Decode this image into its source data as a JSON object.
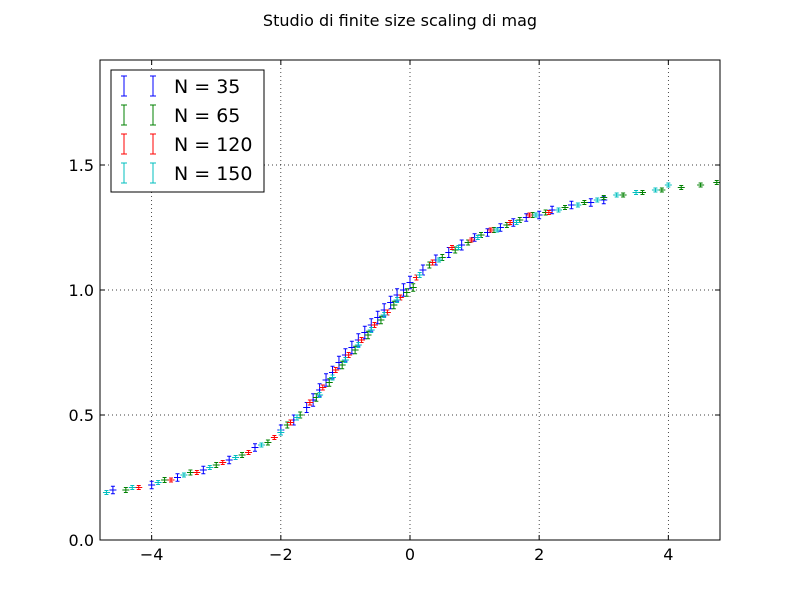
{
  "chart_data": {
    "type": "scatter",
    "title": "Studio di finite size scaling di mag",
    "xlabel": "",
    "ylabel": "",
    "xlim": [
      -4.8,
      4.8
    ],
    "ylim": [
      0.0,
      1.92
    ],
    "x_ticks": [
      -4,
      -2,
      0,
      2,
      4
    ],
    "x_tick_labels": [
      "−4",
      "−2",
      "0",
      "2",
      "4"
    ],
    "y_ticks": [
      0.0,
      0.5,
      1.0,
      1.5
    ],
    "y_tick_labels": [
      "0.0",
      "0.5",
      "1.0",
      "1.5"
    ],
    "grid": true,
    "legend_position": "top-left",
    "marker": "errorbar",
    "series": [
      {
        "name": "N = 35",
        "color": "#0000ff",
        "x": [
          -4.6,
          -4.0,
          -3.6,
          -3.2,
          -2.8,
          -2.4,
          -2.0,
          -1.8,
          -1.6,
          -1.5,
          -1.4,
          -1.3,
          -1.2,
          -1.1,
          -1.0,
          -0.9,
          -0.8,
          -0.7,
          -0.6,
          -0.5,
          -0.4,
          -0.3,
          -0.2,
          -0.1,
          0.0,
          0.2,
          0.4,
          0.6,
          0.8,
          1.0,
          1.2,
          1.4,
          1.6,
          1.8,
          2.0,
          2.2,
          2.5,
          2.8,
          3.0
        ],
        "y": [
          0.2,
          0.22,
          0.25,
          0.28,
          0.32,
          0.37,
          0.44,
          0.48,
          0.53,
          0.56,
          0.6,
          0.64,
          0.67,
          0.71,
          0.74,
          0.77,
          0.8,
          0.83,
          0.86,
          0.89,
          0.92,
          0.95,
          0.98,
          1.0,
          1.03,
          1.08,
          1.12,
          1.15,
          1.18,
          1.21,
          1.23,
          1.25,
          1.27,
          1.29,
          1.3,
          1.32,
          1.34,
          1.35,
          1.36
        ],
        "yerr": [
          0.015,
          0.015,
          0.015,
          0.015,
          0.015,
          0.015,
          0.02,
          0.02,
          0.02,
          0.025,
          0.025,
          0.025,
          0.025,
          0.025,
          0.025,
          0.025,
          0.025,
          0.025,
          0.025,
          0.025,
          0.025,
          0.025,
          0.025,
          0.025,
          0.025,
          0.02,
          0.02,
          0.02,
          0.02,
          0.015,
          0.015,
          0.015,
          0.015,
          0.015,
          0.015,
          0.015,
          0.015,
          0.015,
          0.015
        ]
      },
      {
        "name": "N = 65",
        "color": "#008000",
        "x": [
          -4.4,
          -3.8,
          -3.4,
          -3.0,
          -2.6,
          -2.2,
          -1.9,
          -1.7,
          -1.45,
          -1.25,
          -1.05,
          -0.85,
          -0.65,
          -0.45,
          -0.25,
          -0.05,
          0.05,
          0.3,
          0.5,
          0.7,
          0.9,
          1.1,
          1.3,
          1.5,
          1.7,
          1.9,
          2.1,
          2.4,
          2.7,
          3.0,
          3.3,
          3.6,
          3.9,
          4.2,
          4.5,
          4.75
        ],
        "y": [
          0.2,
          0.24,
          0.27,
          0.3,
          0.34,
          0.39,
          0.46,
          0.5,
          0.57,
          0.63,
          0.7,
          0.76,
          0.82,
          0.88,
          0.94,
          0.99,
          1.01,
          1.1,
          1.13,
          1.16,
          1.19,
          1.22,
          1.24,
          1.26,
          1.28,
          1.3,
          1.31,
          1.33,
          1.35,
          1.37,
          1.38,
          1.39,
          1.4,
          1.41,
          1.42,
          1.43
        ],
        "yerr": [
          0.01,
          0.01,
          0.01,
          0.01,
          0.01,
          0.01,
          0.012,
          0.012,
          0.015,
          0.015,
          0.015,
          0.015,
          0.015,
          0.015,
          0.015,
          0.015,
          0.015,
          0.012,
          0.012,
          0.012,
          0.01,
          0.01,
          0.01,
          0.01,
          0.01,
          0.01,
          0.01,
          0.008,
          0.008,
          0.008,
          0.008,
          0.008,
          0.008,
          0.008,
          0.008,
          0.008
        ]
      },
      {
        "name": "N = 120",
        "color": "#ff0000",
        "x": [
          -4.2,
          -3.7,
          -3.3,
          -2.9,
          -2.5,
          -2.1,
          -1.85,
          -1.55,
          -1.35,
          -1.15,
          -0.95,
          -0.75,
          -0.55,
          -0.35,
          -0.15,
          0.1,
          0.35,
          0.65,
          0.95,
          1.25,
          1.55,
          1.85,
          2.15
        ],
        "y": [
          0.21,
          0.24,
          0.27,
          0.31,
          0.35,
          0.41,
          0.47,
          0.55,
          0.61,
          0.68,
          0.74,
          0.8,
          0.86,
          0.91,
          0.97,
          1.05,
          1.11,
          1.17,
          1.2,
          1.24,
          1.27,
          1.3,
          1.31
        ],
        "yerr": [
          0.008,
          0.008,
          0.008,
          0.008,
          0.008,
          0.008,
          0.01,
          0.01,
          0.01,
          0.01,
          0.01,
          0.01,
          0.01,
          0.01,
          0.01,
          0.01,
          0.01,
          0.008,
          0.008,
          0.008,
          0.008,
          0.008,
          0.008
        ]
      },
      {
        "name": "N = 150",
        "color": "#00bfbf",
        "x": [
          -4.7,
          -4.3,
          -3.9,
          -3.5,
          -3.1,
          -2.7,
          -2.3,
          -2.0,
          -1.75,
          -1.4,
          -1.2,
          -1.0,
          -0.8,
          -0.6,
          -0.4,
          -0.2,
          0.15,
          0.45,
          0.75,
          1.05,
          1.35,
          1.65,
          1.95,
          2.3,
          2.6,
          2.9,
          3.2,
          3.5,
          3.8,
          4.0
        ],
        "y": [
          0.19,
          0.21,
          0.23,
          0.26,
          0.29,
          0.33,
          0.38,
          0.43,
          0.49,
          0.58,
          0.65,
          0.72,
          0.78,
          0.84,
          0.9,
          0.96,
          1.06,
          1.12,
          1.17,
          1.21,
          1.24,
          1.27,
          1.3,
          1.32,
          1.34,
          1.36,
          1.38,
          1.39,
          1.4,
          1.42
        ],
        "yerr": [
          0.008,
          0.008,
          0.008,
          0.008,
          0.008,
          0.008,
          0.008,
          0.01,
          0.01,
          0.01,
          0.01,
          0.01,
          0.01,
          0.01,
          0.01,
          0.01,
          0.01,
          0.008,
          0.008,
          0.008,
          0.008,
          0.008,
          0.008,
          0.008,
          0.008,
          0.008,
          0.008,
          0.008,
          0.008,
          0.008
        ]
      }
    ]
  }
}
